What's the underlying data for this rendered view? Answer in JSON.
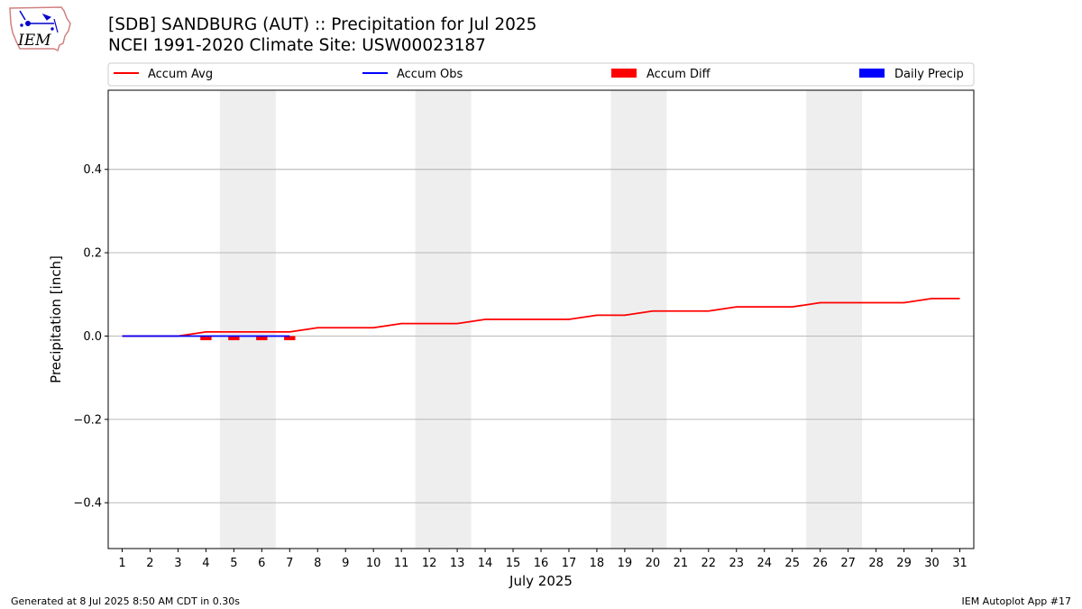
{
  "header": {
    "logo_text": "IEM",
    "title_line1": "[SDB] SANDBURG (AUT) :: Precipitation for Jul 2025",
    "title_line2": "NCEI 1991-2020 Climate Site: USW00023187"
  },
  "footer": {
    "generated": "Generated at 8 Jul 2025 8:50 AM CDT in 0.30s",
    "app": "IEM Autoplot App #17"
  },
  "colors": {
    "accum_avg": "#ff0000",
    "accum_obs": "#0000ff",
    "accum_diff": "#ff0000",
    "daily_precip": "#0000ff",
    "weekend_shade": "#eeeeee",
    "grid": "#b0b0b0"
  },
  "chart_data": {
    "type": "line",
    "xlabel": "July 2025",
    "ylabel": "Precipitation [inch]",
    "x": [
      1,
      2,
      3,
      4,
      5,
      6,
      7,
      8,
      9,
      10,
      11,
      12,
      13,
      14,
      15,
      16,
      17,
      18,
      19,
      20,
      21,
      22,
      23,
      24,
      25,
      26,
      27,
      28,
      29,
      30,
      31
    ],
    "xlim": [
      0.5,
      31.5
    ],
    "ylim": [
      -0.51,
      0.59
    ],
    "yticks": [
      -0.4,
      -0.2,
      0.0,
      0.2,
      0.4
    ],
    "ytick_labels": [
      "−0.4",
      "−0.2",
      "0.0",
      "0.2",
      "0.4"
    ],
    "grid": true,
    "legend": [
      {
        "name": "Accum Avg",
        "kind": "line",
        "color": "#ff0000"
      },
      {
        "name": "Accum Obs",
        "kind": "line",
        "color": "#0000ff"
      },
      {
        "name": "Accum Diff",
        "kind": "bar",
        "color": "#ff0000"
      },
      {
        "name": "Daily Precip",
        "kind": "bar",
        "color": "#0000ff"
      }
    ],
    "legend_position": "top",
    "shaded_weekends": [
      [
        4.5,
        6.5
      ],
      [
        11.5,
        13.5
      ],
      [
        18.5,
        20.5
      ],
      [
        25.5,
        27.5
      ]
    ],
    "series": [
      {
        "name": "Accum Avg",
        "color": "#ff0000",
        "values": [
          0.0,
          0.0,
          0.0,
          0.01,
          0.01,
          0.01,
          0.01,
          0.02,
          0.02,
          0.02,
          0.03,
          0.03,
          0.03,
          0.04,
          0.04,
          0.04,
          0.04,
          0.05,
          0.05,
          0.06,
          0.06,
          0.06,
          0.07,
          0.07,
          0.07,
          0.08,
          0.08,
          0.08,
          0.08,
          0.09,
          0.09
        ]
      },
      {
        "name": "Accum Obs",
        "color": "#0000ff",
        "x": [
          1,
          2,
          3,
          4,
          5,
          6,
          7
        ],
        "values": [
          0.0,
          0.0,
          0.0,
          0.0,
          0.0,
          0.0,
          0.0
        ]
      },
      {
        "name": "Accum Diff",
        "color": "#ff0000",
        "x": [
          4,
          5,
          6,
          7
        ],
        "values": [
          -0.01,
          -0.01,
          -0.01,
          -0.01
        ]
      }
    ]
  }
}
